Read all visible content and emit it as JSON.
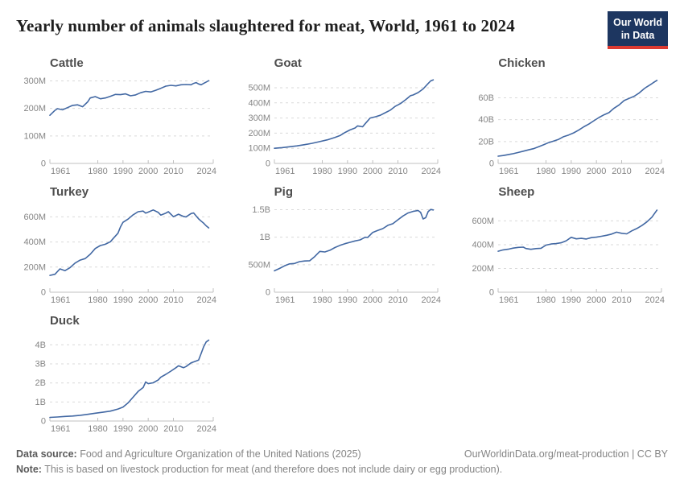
{
  "header": {
    "title": "Yearly number of animals slaughtered for meat, World, 1961 to 2024",
    "logo_line1": "Our World",
    "logo_line2": "in Data"
  },
  "footer": {
    "datasource_label": "Data source:",
    "datasource_text": " Food and Agriculture Organization of the United Nations (2025)",
    "link_text": "OurWorldinData.org/meat-production | CC BY",
    "note_label": "Note:",
    "note_text": " This is based on livestock production for meat (and therefore does not include dairy or egg production)."
  },
  "colors": {
    "line": "#4268a3",
    "grid": "#d9d9d9",
    "axis": "#c0c0c0",
    "tick_label": "#858585",
    "chart_title": "#4e4e4e",
    "logo_bg": "#1d3660",
    "logo_red": "#dc3a31"
  },
  "chart_data": [
    {
      "type": "line",
      "title": "Cattle",
      "unit": "animals (millions)",
      "xlim": [
        1961,
        2025.8
      ],
      "ylim": [
        0,
        322
      ],
      "yticks": [
        {
          "v": 0,
          "label": "0"
        },
        {
          "v": 100,
          "label": "100M"
        },
        {
          "v": 200,
          "label": "200M"
        },
        {
          "v": 300,
          "label": "300M"
        }
      ],
      "xticks": [
        {
          "v": 1961,
          "label": "1961"
        },
        {
          "v": 1980,
          "label": "1980"
        },
        {
          "v": 1990,
          "label": "1990"
        },
        {
          "v": 2000,
          "label": "2000"
        },
        {
          "v": 2010,
          "label": "2010"
        },
        {
          "v": 2024,
          "label": "2024"
        }
      ],
      "x": [
        1961,
        1963,
        1964,
        1966,
        1968,
        1970,
        1972,
        1974,
        1976,
        1977,
        1979,
        1981,
        1983,
        1985,
        1987,
        1989,
        1991,
        1993,
        1995,
        1997,
        1999,
        2001,
        2003,
        2005,
        2007,
        2009,
        2011,
        2013,
        2015,
        2017,
        2018,
        2019,
        2020,
        2021,
        2022,
        2023,
        2024
      ],
      "values": [
        175,
        193,
        199,
        195,
        203,
        211,
        213,
        206,
        224,
        238,
        243,
        235,
        238,
        244,
        251,
        250,
        253,
        246,
        249,
        257,
        262,
        260,
        266,
        273,
        281,
        284,
        282,
        286,
        287,
        286,
        291,
        294,
        289,
        286,
        291,
        296,
        301
      ]
    },
    {
      "type": "line",
      "title": "Goat",
      "unit": "animals (millions)",
      "xlim": [
        1961,
        2025.8
      ],
      "ylim": [
        0,
        585
      ],
      "yticks": [
        {
          "v": 0,
          "label": "0"
        },
        {
          "v": 100,
          "label": "100M"
        },
        {
          "v": 200,
          "label": "200M"
        },
        {
          "v": 300,
          "label": "300M"
        },
        {
          "v": 400,
          "label": "400M"
        },
        {
          "v": 500,
          "label": "500M"
        }
      ],
      "xticks": [
        {
          "v": 1961,
          "label": "1961"
        },
        {
          "v": 1980,
          "label": "1980"
        },
        {
          "v": 1990,
          "label": "1990"
        },
        {
          "v": 2000,
          "label": "2000"
        },
        {
          "v": 2010,
          "label": "2010"
        },
        {
          "v": 2024,
          "label": "2024"
        }
      ],
      "x": [
        1961,
        1964,
        1967,
        1970,
        1973,
        1976,
        1979,
        1982,
        1985,
        1987,
        1989,
        1991,
        1993,
        1994,
        1996,
        1997,
        1999,
        2001,
        2003,
        2005,
        2007,
        2009,
        2011,
        2013,
        2015,
        2016,
        2018,
        2020,
        2022,
        2023,
        2024
      ],
      "values": [
        100,
        104,
        110,
        116,
        124,
        133,
        144,
        156,
        172,
        184,
        204,
        221,
        234,
        248,
        242,
        262,
        300,
        308,
        318,
        335,
        352,
        378,
        395,
        420,
        448,
        452,
        468,
        492,
        528,
        545,
        552
      ]
    },
    {
      "type": "line",
      "title": "Chicken",
      "unit": "animals (billions)",
      "xlim": [
        1961,
        2025.8
      ],
      "ylim": [
        0,
        81
      ],
      "yticks": [
        {
          "v": 0,
          "label": "0"
        },
        {
          "v": 20,
          "label": "20B"
        },
        {
          "v": 40,
          "label": "40B"
        },
        {
          "v": 60,
          "label": "60B"
        }
      ],
      "xticks": [
        {
          "v": 1961,
          "label": "1961"
        },
        {
          "v": 1980,
          "label": "1980"
        },
        {
          "v": 1990,
          "label": "1990"
        },
        {
          "v": 2000,
          "label": "2000"
        },
        {
          "v": 2010,
          "label": "2010"
        },
        {
          "v": 2024,
          "label": "2024"
        }
      ],
      "x": [
        1961,
        1963,
        1965,
        1967,
        1969,
        1971,
        1973,
        1975,
        1977,
        1979,
        1981,
        1983,
        1985,
        1987,
        1989,
        1991,
        1993,
        1995,
        1997,
        1999,
        2001,
        2003,
        2005,
        2007,
        2009,
        2011,
        2013,
        2015,
        2017,
        2019,
        2020,
        2021,
        2022,
        2023,
        2024
      ],
      "values": [
        6.6,
        7.2,
        8.0,
        8.9,
        10.0,
        11.2,
        12.4,
        13.5,
        15.2,
        17.0,
        19.0,
        20.5,
        22.0,
        24.5,
        26.0,
        28.0,
        30.5,
        33.5,
        36.0,
        39.0,
        42.0,
        44.5,
        46.5,
        50.5,
        53.5,
        57.5,
        59.5,
        61.5,
        64.5,
        68.5,
        70.0,
        71.5,
        73.0,
        74.5,
        76.0
      ]
    },
    {
      "type": "line",
      "title": "Turkey",
      "unit": "animals (millions)",
      "xlim": [
        1961,
        2025.8
      ],
      "ylim": [
        0,
        705
      ],
      "yticks": [
        {
          "v": 0,
          "label": "0"
        },
        {
          "v": 200,
          "label": "200M"
        },
        {
          "v": 400,
          "label": "400M"
        },
        {
          "v": 600,
          "label": "600M"
        }
      ],
      "xticks": [
        {
          "v": 1961,
          "label": "1961"
        },
        {
          "v": 1980,
          "label": "1980"
        },
        {
          "v": 1990,
          "label": "1990"
        },
        {
          "v": 2000,
          "label": "2000"
        },
        {
          "v": 2010,
          "label": "2010"
        },
        {
          "v": 2024,
          "label": "2024"
        }
      ],
      "x": [
        1961,
        1963,
        1965,
        1967,
        1969,
        1971,
        1973,
        1975,
        1977,
        1979,
        1981,
        1983,
        1985,
        1986,
        1988,
        1989,
        1990,
        1992,
        1994,
        1996,
        1998,
        1999,
        2000,
        2002,
        2004,
        2005,
        2007,
        2008,
        2010,
        2012,
        2014,
        2015,
        2017,
        2018,
        2020,
        2021,
        2022,
        2023,
        2024
      ],
      "values": [
        134,
        143,
        186,
        172,
        196,
        232,
        256,
        268,
        302,
        348,
        372,
        382,
        402,
        425,
        470,
        520,
        556,
        582,
        616,
        641,
        646,
        630,
        638,
        655,
        635,
        614,
        630,
        641,
        601,
        621,
        603,
        600,
        626,
        631,
        584,
        566,
        549,
        529,
        512
      ]
    },
    {
      "type": "line",
      "title": "Pig",
      "unit": "animals (millions)",
      "xlim": [
        1961,
        2025.8
      ],
      "ylim": [
        0,
        1610
      ],
      "yticks": [
        {
          "v": 0,
          "label": "0"
        },
        {
          "v": 500,
          "label": "500M"
        },
        {
          "v": 1000,
          "label": "1B"
        },
        {
          "v": 1500,
          "label": "1.5B"
        }
      ],
      "xticks": [
        {
          "v": 1961,
          "label": "1961"
        },
        {
          "v": 1980,
          "label": "1980"
        },
        {
          "v": 1990,
          "label": "1990"
        },
        {
          "v": 2000,
          "label": "2000"
        },
        {
          "v": 2010,
          "label": "2010"
        },
        {
          "v": 2024,
          "label": "2024"
        }
      ],
      "x": [
        1961,
        1963,
        1965,
        1967,
        1969,
        1971,
        1973,
        1975,
        1977,
        1979,
        1981,
        1983,
        1985,
        1987,
        1989,
        1991,
        1993,
        1995,
        1997,
        1998,
        2000,
        2002,
        2004,
        2006,
        2008,
        2010,
        2012,
        2014,
        2016,
        2018,
        2019,
        2020,
        2021,
        2022,
        2023,
        2024
      ],
      "values": [
        390,
        432,
        478,
        515,
        522,
        556,
        568,
        572,
        648,
        742,
        732,
        762,
        812,
        852,
        882,
        908,
        932,
        952,
        1000,
        996,
        1088,
        1124,
        1156,
        1216,
        1246,
        1318,
        1386,
        1440,
        1470,
        1486,
        1452,
        1332,
        1356,
        1466,
        1504,
        1496
      ]
    },
    {
      "type": "line",
      "title": "Sheep",
      "unit": "animals (millions)",
      "xlim": [
        1961,
        2025.8
      ],
      "ylim": [
        0,
        745
      ],
      "yticks": [
        {
          "v": 0,
          "label": "0"
        },
        {
          "v": 200,
          "label": "200M"
        },
        {
          "v": 400,
          "label": "400M"
        },
        {
          "v": 600,
          "label": "600M"
        }
      ],
      "xticks": [
        {
          "v": 1961,
          "label": "1961"
        },
        {
          "v": 1980,
          "label": "1980"
        },
        {
          "v": 1990,
          "label": "1990"
        },
        {
          "v": 2000,
          "label": "2000"
        },
        {
          "v": 2010,
          "label": "2010"
        },
        {
          "v": 2024,
          "label": "2024"
        }
      ],
      "x": [
        1961,
        1963,
        1965,
        1967,
        1969,
        1971,
        1972,
        1974,
        1976,
        1978,
        1980,
        1982,
        1984,
        1986,
        1988,
        1990,
        1992,
        1994,
        1996,
        1998,
        2000,
        2002,
        2004,
        2006,
        2008,
        2010,
        2012,
        2014,
        2016,
        2018,
        2020,
        2022,
        2023,
        2024
      ],
      "values": [
        345,
        356,
        362,
        371,
        377,
        379,
        368,
        361,
        367,
        370,
        396,
        406,
        409,
        416,
        433,
        462,
        449,
        453,
        448,
        459,
        463,
        471,
        479,
        489,
        505,
        496,
        491,
        516,
        536,
        561,
        591,
        631,
        661,
        691
      ]
    },
    {
      "type": "line",
      "title": "Duck",
      "unit": "animals (billions)",
      "xlim": [
        1961,
        2025.8
      ],
      "ylim": [
        0,
        4.65
      ],
      "yticks": [
        {
          "v": 0,
          "label": "0"
        },
        {
          "v": 1,
          "label": "1B"
        },
        {
          "v": 2,
          "label": "2B"
        },
        {
          "v": 3,
          "label": "3B"
        },
        {
          "v": 4,
          "label": "4B"
        }
      ],
      "xticks": [
        {
          "v": 1961,
          "label": "1961"
        },
        {
          "v": 1980,
          "label": "1980"
        },
        {
          "v": 1990,
          "label": "1990"
        },
        {
          "v": 2000,
          "label": "2000"
        },
        {
          "v": 2010,
          "label": "2010"
        },
        {
          "v": 2024,
          "label": "2024"
        }
      ],
      "x": [
        1961,
        1964,
        1967,
        1970,
        1973,
        1976,
        1979,
        1982,
        1985,
        1988,
        1990,
        1992,
        1994,
        1996,
        1998,
        1999,
        2000,
        2002,
        2004,
        2005,
        2007,
        2009,
        2011,
        2012,
        2014,
        2015,
        2017,
        2019,
        2020,
        2021,
        2022,
        2023,
        2024
      ],
      "values": [
        0.19,
        0.21,
        0.24,
        0.26,
        0.3,
        0.35,
        0.41,
        0.46,
        0.52,
        0.63,
        0.73,
        0.95,
        1.25,
        1.55,
        1.76,
        2.05,
        1.96,
        2.01,
        2.16,
        2.3,
        2.45,
        2.62,
        2.8,
        2.9,
        2.8,
        2.86,
        3.05,
        3.15,
        3.2,
        3.55,
        3.9,
        4.15,
        4.25
      ]
    }
  ]
}
